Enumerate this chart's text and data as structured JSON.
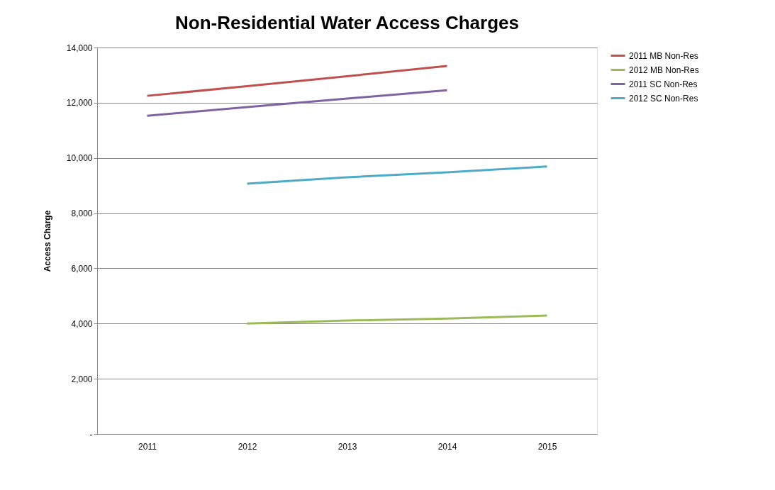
{
  "chart_data": {
    "type": "line",
    "title": "Non-Residential Water Access Charges",
    "ylabel": "Access Charge",
    "categories": [
      "2011",
      "2012",
      "2013",
      "2014",
      "2015"
    ],
    "series": [
      {
        "name": "2011 MB Non-Res",
        "color": "#c0504d",
        "values": [
          12250,
          12600,
          12960,
          13330,
          null
        ]
      },
      {
        "name": "2012 MB Non-Res",
        "color": "#9bbb59",
        "values": [
          null,
          4000,
          4110,
          4180,
          4290
        ]
      },
      {
        "name": "2011 SC Non-Res",
        "color": "#8064a2",
        "values": [
          11530,
          11840,
          12150,
          12450,
          null
        ]
      },
      {
        "name": "2012 SC Non-Res",
        "color": "#4bacc6",
        "values": [
          null,
          9070,
          9300,
          9480,
          9690
        ]
      }
    ],
    "ylim": [
      0,
      14000
    ],
    "yticks": [
      {
        "value": 0,
        "label": "-"
      },
      {
        "value": 2000,
        "label": "2,000"
      },
      {
        "value": 4000,
        "label": "4,000"
      },
      {
        "value": 6000,
        "label": "6,000"
      },
      {
        "value": 8000,
        "label": "8,000"
      },
      {
        "value": 10000,
        "label": "10,000"
      },
      {
        "value": 12000,
        "label": "12,000"
      },
      {
        "value": 14000,
        "label": "14,000"
      }
    ],
    "grid": "y",
    "legend": "right",
    "marker": "none",
    "line_style": "solid"
  }
}
